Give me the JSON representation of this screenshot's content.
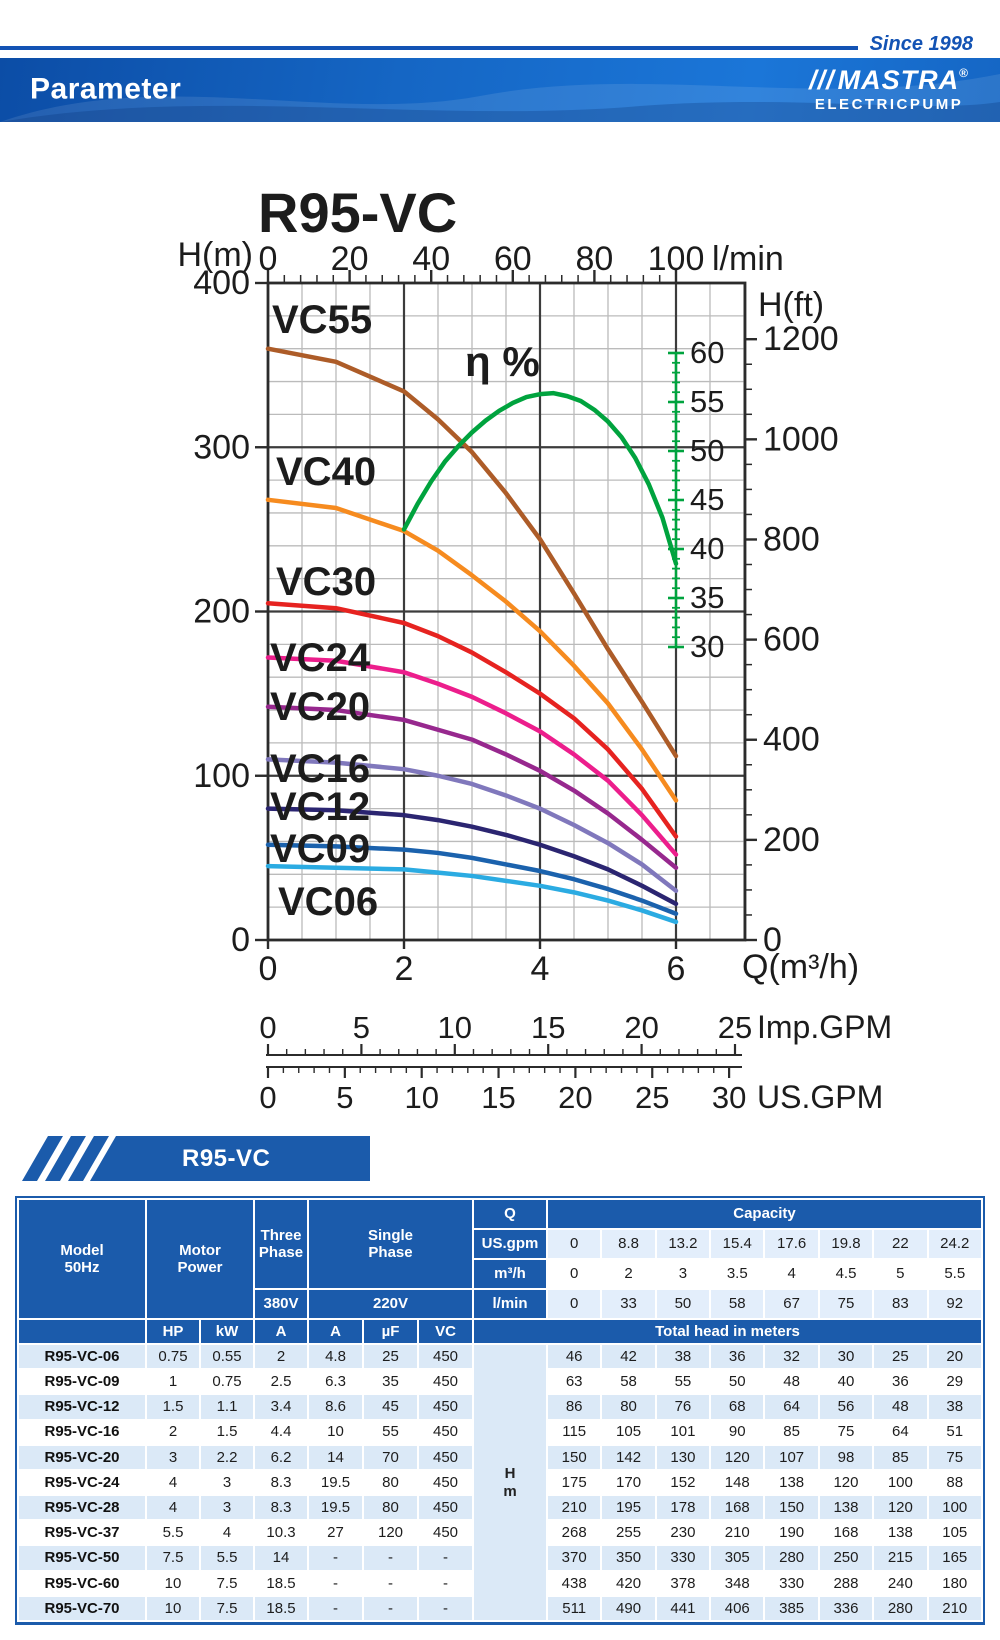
{
  "page": {
    "since": "Since 1998",
    "title": "Parameter"
  },
  "logo": {
    "slashes": "///",
    "brand": "MASTRA",
    "registered": "®",
    "sub": "ELECTRICPUMP"
  },
  "colors": {
    "accent_blue": "#1b5bab",
    "rule_blue": "#1353b4",
    "row_light": "#dbe9f7",
    "unit_light": "#e3eefb",
    "eta_green": "#00a33e",
    "grid_light": "#bbbbbb",
    "grid_dark": "#3c3c3c",
    "frame": "#2b2b2b"
  },
  "chart_data": {
    "type": "line",
    "title": "R95-VC",
    "xlabel": "Q(m³/h)",
    "ylabel": "H(m)",
    "xlim": [
      0,
      7.05
    ],
    "ylim": [
      0,
      400
    ],
    "grid": true,
    "x_axis": {
      "label": "Q(m³/h)",
      "ticks": [
        0,
        2,
        4,
        6
      ]
    },
    "y_axis": {
      "label": "H(m)",
      "ticks": [
        0,
        100,
        200,
        300,
        400
      ]
    },
    "top_axis": {
      "label": "l/min",
      "ticks": [
        0,
        20,
        40,
        60,
        80,
        100
      ]
    },
    "right_axis": {
      "label": "H(ft)",
      "ticks": [
        0,
        200,
        400,
        600,
        800,
        1000,
        1200
      ]
    },
    "eta_axis": {
      "label": "η %",
      "ticks": [
        30,
        35,
        40,
        45,
        50,
        55,
        60
      ]
    },
    "imp_axis": {
      "label": "Imp.GPM",
      "ticks": [
        0,
        5,
        10,
        15,
        20,
        25
      ]
    },
    "us_axis": {
      "label": "US.GPM",
      "ticks": [
        0,
        5,
        10,
        15,
        20,
        25,
        30
      ]
    },
    "q_points": [
      0,
      1,
      2,
      2.5,
      3,
      3.5,
      4,
      4.5,
      5,
      5.5,
      6
    ],
    "series": [
      {
        "name": "VC55",
        "color": "#ad5c28",
        "heads": [
          360,
          352,
          334,
          317,
          297,
          272,
          244,
          211,
          177,
          145,
          112
        ]
      },
      {
        "name": "VC40",
        "color": "#f68b1f",
        "heads": [
          268,
          263,
          249,
          237,
          222,
          206,
          188,
          167,
          144,
          116,
          85
        ]
      },
      {
        "name": "VC30",
        "color": "#e62320",
        "heads": [
          205,
          202,
          193,
          185,
          175,
          163,
          150,
          135,
          116,
          92,
          63
        ]
      },
      {
        "name": "VC24",
        "color": "#ec1e8c",
        "heads": [
          172,
          170,
          163,
          156,
          148,
          138,
          127,
          113,
          97,
          76,
          52
        ]
      },
      {
        "name": "VC20",
        "color": "#97288e",
        "heads": [
          142,
          140,
          134,
          128,
          122,
          113,
          103,
          91,
          77,
          61,
          44
        ]
      },
      {
        "name": "VC16",
        "color": "#8078bc",
        "heads": [
          110,
          108,
          104,
          100,
          95,
          88,
          80,
          70,
          59,
          46,
          30
        ]
      },
      {
        "name": "VC12",
        "color": "#2b2571",
        "heads": [
          80,
          79,
          76,
          73,
          69,
          64,
          58,
          51,
          43,
          33,
          22
        ]
      },
      {
        "name": "VC09",
        "color": "#1b62ad",
        "heads": [
          58,
          57,
          55,
          53,
          50,
          46,
          42,
          37,
          31,
          24,
          16
        ]
      },
      {
        "name": "VC06",
        "color": "#2babe2",
        "heads": [
          45,
          44,
          43,
          41,
          39,
          36,
          33,
          29,
          24,
          18,
          11
        ]
      }
    ],
    "efficiency": {
      "name": "η %",
      "color": "#00a33e",
      "points": [
        [
          2,
          42
        ],
        [
          2.2,
          44.6
        ],
        [
          2.4,
          46.9
        ],
        [
          2.6,
          48.9
        ],
        [
          2.8,
          50.5
        ],
        [
          3,
          51.9
        ],
        [
          3.2,
          53.1
        ],
        [
          3.4,
          54.1
        ],
        [
          3.6,
          54.9
        ],
        [
          3.8,
          55.5
        ],
        [
          4,
          55.8
        ],
        [
          4.2,
          55.9
        ],
        [
          4.4,
          55.6
        ],
        [
          4.6,
          55.1
        ],
        [
          4.8,
          54.2
        ],
        [
          5,
          53
        ],
        [
          5.2,
          51.4
        ],
        [
          5.4,
          49.3
        ],
        [
          5.6,
          46.6
        ],
        [
          5.8,
          43.2
        ],
        [
          6,
          38.5
        ]
      ]
    }
  },
  "section": {
    "banner": "R95-VC"
  },
  "table": {
    "header": {
      "model": [
        "Model",
        "50Hz"
      ],
      "motor": [
        "Motor",
        "Power"
      ],
      "three": [
        "Three",
        "Phase"
      ],
      "single": [
        "Single",
        "Phase"
      ],
      "v380": "380V",
      "v220": "220V",
      "q": "Q",
      "capacity": "Capacity",
      "unit_rows": [
        {
          "label": "US.gpm",
          "values": [
            "0",
            "8.8",
            "13.2",
            "15.4",
            "17.6",
            "19.8",
            "22",
            "24.2"
          ],
          "shade": "light"
        },
        {
          "label": "m³/h",
          "values": [
            "0",
            "2",
            "3",
            "3.5",
            "4",
            "4.5",
            "5",
            "5.5"
          ],
          "shade": "white"
        },
        {
          "label": "l/min",
          "values": [
            "0",
            "33",
            "50",
            "58",
            "67",
            "75",
            "83",
            "92"
          ],
          "shade": "light"
        }
      ],
      "sub": [
        "HP",
        "kW",
        "A",
        "A",
        "µF",
        "VC"
      ],
      "total_head": "Total head in meters",
      "head_unit": [
        "H",
        "m"
      ]
    },
    "rows": [
      {
        "model": "R95-VC-06",
        "vals": [
          "0.75",
          "0.55",
          "2",
          "4.8",
          "25",
          "450"
        ],
        "heads": [
          "46",
          "42",
          "38",
          "36",
          "32",
          "30",
          "25",
          "20"
        ]
      },
      {
        "model": "R95-VC-09",
        "vals": [
          "1",
          "0.75",
          "2.5",
          "6.3",
          "35",
          "450"
        ],
        "heads": [
          "63",
          "58",
          "55",
          "50",
          "48",
          "40",
          "36",
          "29"
        ]
      },
      {
        "model": "R95-VC-12",
        "vals": [
          "1.5",
          "1.1",
          "3.4",
          "8.6",
          "45",
          "450"
        ],
        "heads": [
          "86",
          "80",
          "76",
          "68",
          "64",
          "56",
          "48",
          "38"
        ]
      },
      {
        "model": "R95-VC-16",
        "vals": [
          "2",
          "1.5",
          "4.4",
          "10",
          "55",
          "450"
        ],
        "heads": [
          "115",
          "105",
          "101",
          "90",
          "85",
          "75",
          "64",
          "51"
        ]
      },
      {
        "model": "R95-VC-20",
        "vals": [
          "3",
          "2.2",
          "6.2",
          "14",
          "70",
          "450"
        ],
        "heads": [
          "150",
          "142",
          "130",
          "120",
          "107",
          "98",
          "85",
          "75"
        ]
      },
      {
        "model": "R95-VC-24",
        "vals": [
          "4",
          "3",
          "8.3",
          "19.5",
          "80",
          "450"
        ],
        "heads": [
          "175",
          "170",
          "152",
          "148",
          "138",
          "120",
          "100",
          "88"
        ]
      },
      {
        "model": "R95-VC-28",
        "vals": [
          "4",
          "3",
          "8.3",
          "19.5",
          "80",
          "450"
        ],
        "heads": [
          "210",
          "195",
          "178",
          "168",
          "150",
          "138",
          "120",
          "100"
        ]
      },
      {
        "model": "R95-VC-37",
        "vals": [
          "5.5",
          "4",
          "10.3",
          "27",
          "120",
          "450"
        ],
        "heads": [
          "268",
          "255",
          "230",
          "210",
          "190",
          "168",
          "138",
          "105"
        ]
      },
      {
        "model": "R95-VC-50",
        "vals": [
          "7.5",
          "5.5",
          "14",
          "-",
          "-",
          "-"
        ],
        "heads": [
          "370",
          "350",
          "330",
          "305",
          "280",
          "250",
          "215",
          "165"
        ]
      },
      {
        "model": "R95-VC-60",
        "vals": [
          "10",
          "7.5",
          "18.5",
          "-",
          "-",
          "-"
        ],
        "heads": [
          "438",
          "420",
          "378",
          "348",
          "330",
          "288",
          "240",
          "180"
        ]
      },
      {
        "model": "R95-VC-70",
        "vals": [
          "10",
          "7.5",
          "18.5",
          "-",
          "-",
          "-"
        ],
        "heads": [
          "511",
          "490",
          "441",
          "406",
          "385",
          "336",
          "280",
          "210"
        ]
      }
    ]
  }
}
